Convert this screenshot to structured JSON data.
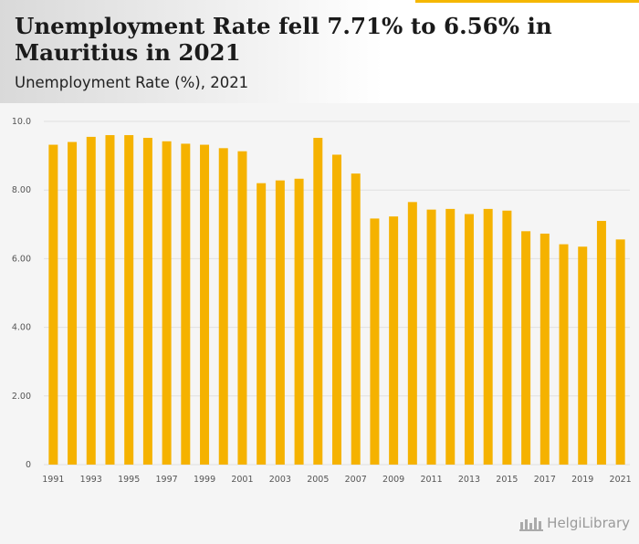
{
  "header": {
    "title": "Unemployment Rate fell 7.71% to 6.56% in Mauritius in 2021",
    "subtitle": "Unemployment Rate (%), 2021",
    "watermark": "HelgiLibrary"
  },
  "colors": {
    "bar": "#f5b200",
    "accent": "#f5b700",
    "grid": "#e0e0e0"
  },
  "chart_data": {
    "type": "bar",
    "title": "Unemployment Rate fell 7.71% to 6.56% in Mauritius in 2021",
    "subtitle": "Unemployment Rate (%), 2021",
    "xlabel": "",
    "ylabel": "",
    "ylim": [
      0,
      10
    ],
    "yticks": [
      0,
      2,
      4,
      6,
      8,
      10
    ],
    "ytick_labels": [
      "0",
      "2.00",
      "4.00",
      "6.00",
      "8.00",
      "10.0"
    ],
    "categories": [
      "1991",
      "1992",
      "1993",
      "1994",
      "1995",
      "1996",
      "1997",
      "1998",
      "1999",
      "2000",
      "2001",
      "2002",
      "2003",
      "2004",
      "2005",
      "2006",
      "2007",
      "2008",
      "2009",
      "2010",
      "2011",
      "2012",
      "2013",
      "2014",
      "2015",
      "2016",
      "2017",
      "2018",
      "2019",
      "2020",
      "2021"
    ],
    "xtick_labels": [
      "1991",
      "1993",
      "1995",
      "1997",
      "1999",
      "2001",
      "2003",
      "2005",
      "2007",
      "2009",
      "2011",
      "2013",
      "2015",
      "2017",
      "2019",
      "2021"
    ],
    "values": [
      9.32,
      9.4,
      9.55,
      9.6,
      9.6,
      9.52,
      9.42,
      9.35,
      9.32,
      9.22,
      9.13,
      8.2,
      8.28,
      8.33,
      9.52,
      9.03,
      8.48,
      7.17,
      7.23,
      7.65,
      7.43,
      7.45,
      7.3,
      7.45,
      7.4,
      6.8,
      6.73,
      6.42,
      6.35,
      7.1,
      6.56
    ],
    "grid": true
  }
}
